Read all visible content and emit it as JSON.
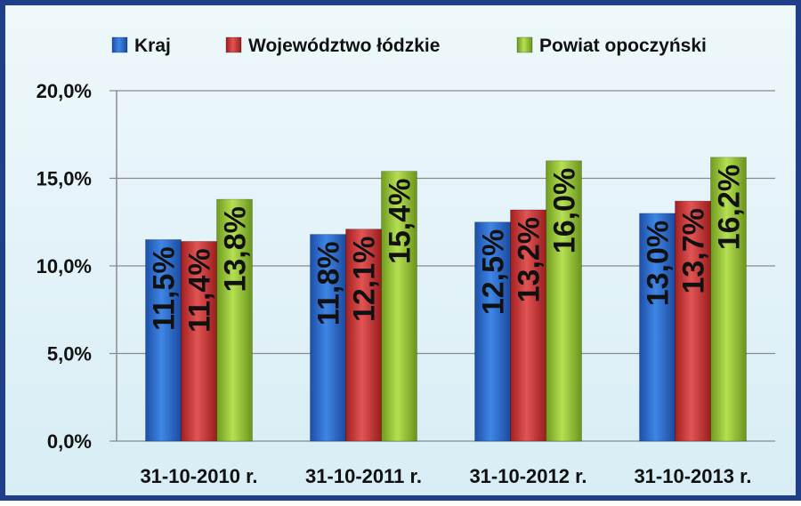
{
  "chart_data": {
    "type": "bar",
    "title": "",
    "xlabel": "",
    "ylabel": "",
    "categories": [
      "31-10-2010 r.",
      "31-10-2011 r.",
      "31-10-2012 r.",
      "31-10-2013 r."
    ],
    "series": [
      {
        "name": "Kraj",
        "values": [
          11.5,
          11.8,
          12.5,
          13.0
        ],
        "labels": [
          "11,5%",
          "11,8%",
          "12,5%",
          "13,0%"
        ],
        "color": "#2f6fd0"
      },
      {
        "name": "Województwo łódzkie",
        "values": [
          11.4,
          12.1,
          13.2,
          13.7
        ],
        "labels": [
          "11,4%",
          "12,1%",
          "13,2%",
          "13,7%"
        ],
        "color": "#d23a3a"
      },
      {
        "name": "Powiat opoczyński",
        "values": [
          13.8,
          15.4,
          16.0,
          16.2
        ],
        "labels": [
          "13,8%",
          "15,4%",
          "16,0%",
          "16,2%"
        ],
        "color": "#9ac93a"
      }
    ],
    "ylim": [
      0,
      20
    ],
    "yticks": [
      0,
      5,
      10,
      15,
      20
    ],
    "ytick_labels": [
      "0,0%",
      "5,0%",
      "10,0%",
      "15,0%",
      "20,0%"
    ],
    "grid": true,
    "legend_position": "top",
    "data_labels": "inside-vertical"
  }
}
